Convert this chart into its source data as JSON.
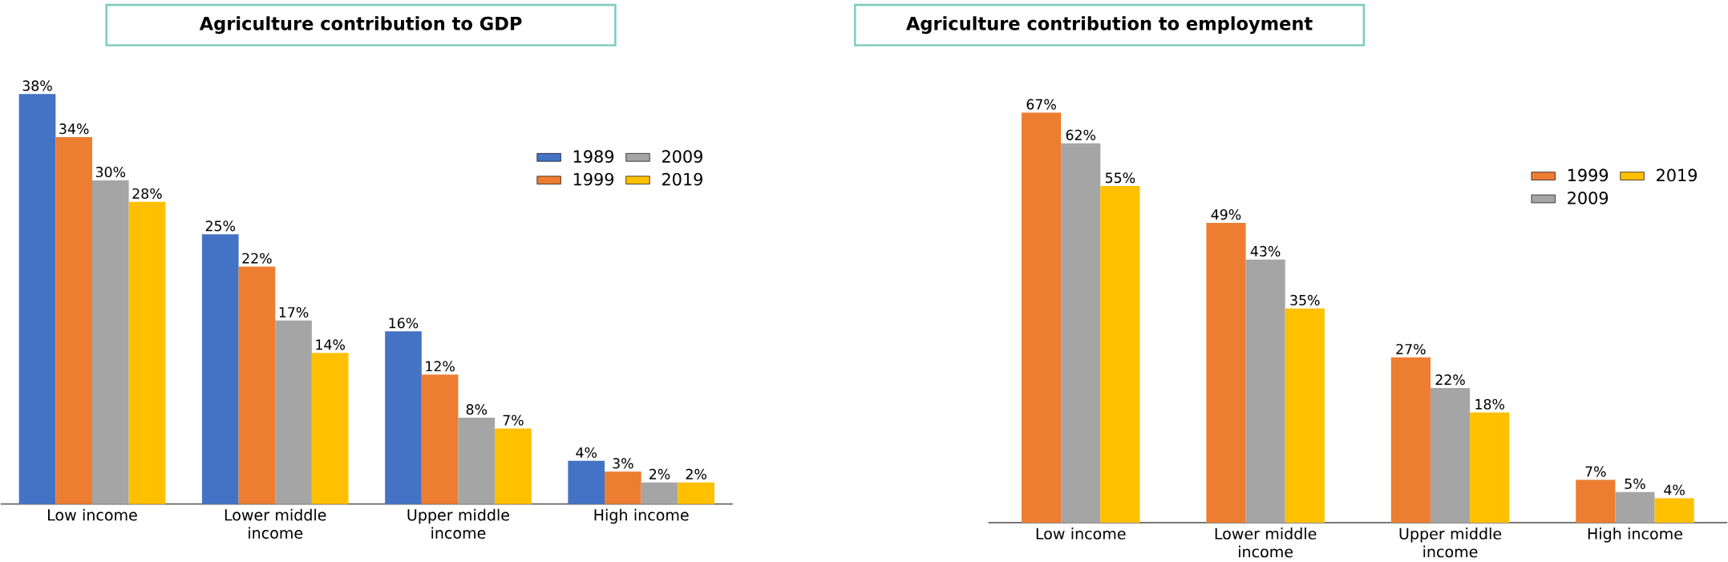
{
  "chart_data": [
    {
      "type": "bar",
      "title": "Agriculture contribution to GDP",
      "categories": [
        "Low income",
        "Lower middle income",
        "Upper middle income",
        "High income"
      ],
      "tick_labels": "x",
      "legend": "top right",
      "series": [
        {
          "name": "1989",
          "color": "#4472c4",
          "values": [
            38,
            25,
            16,
            4
          ],
          "value_labels": [
            "38%",
            "25%",
            "16%",
            "4%"
          ]
        },
        {
          "name": "1999",
          "color": "#ed7d31",
          "values": [
            34,
            22,
            12,
            3
          ],
          "value_labels": [
            "34%",
            "22%",
            "12%",
            "3%"
          ]
        },
        {
          "name": "2009",
          "color": "#a5a5a5",
          "values": [
            30,
            17,
            8,
            2
          ],
          "value_labels": [
            "30%",
            "17%",
            "8%",
            "2%"
          ]
        },
        {
          "name": "2019",
          "color": "#ffc000",
          "values": [
            28,
            14,
            7,
            2
          ],
          "value_labels": [
            "28%",
            "14%",
            "7%",
            "2%"
          ]
        }
      ]
    },
    {
      "type": "bar",
      "title": "Agriculture contribution to employment",
      "categories": [
        "Low income",
        "Lower middle income",
        "Upper middle income",
        "High income"
      ],
      "tick_labels": "x",
      "legend": "top right",
      "series": [
        {
          "name": "1999",
          "color": "#ed7d31",
          "values": [
            67,
            49,
            27,
            7
          ],
          "value_labels": [
            "67%",
            "49%",
            "27%",
            "7%"
          ]
        },
        {
          "name": "2009",
          "color": "#a5a5a5",
          "values": [
            62,
            43,
            22,
            5
          ],
          "value_labels": [
            "62%",
            "43%",
            "22%",
            "5%"
          ]
        },
        {
          "name": "2019",
          "color": "#ffc000",
          "values": [
            55,
            35,
            18,
            4
          ],
          "value_labels": [
            "55%",
            "35%",
            "18%",
            "4%"
          ]
        }
      ]
    }
  ]
}
